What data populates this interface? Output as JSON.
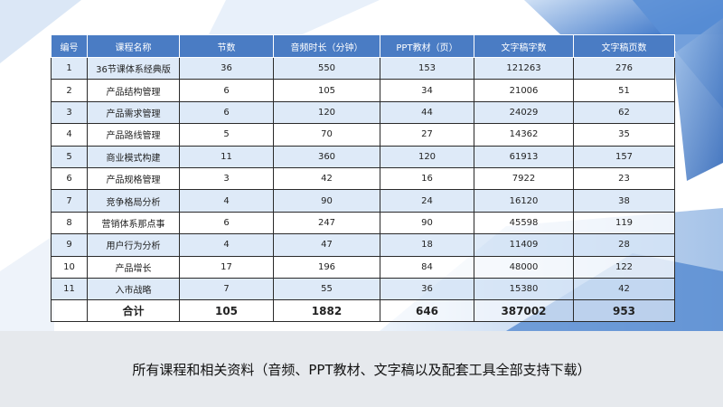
{
  "table": {
    "headers": [
      "编号",
      "课程名称",
      "节数",
      "音频时长（分钟）",
      "PPT教材（页）",
      "文字稿字数",
      "文字稿页数"
    ],
    "rows": [
      [
        "1",
        "36节课体系经典版",
        "36",
        "550",
        "153",
        "121263",
        "276"
      ],
      [
        "2",
        "产品结构管理",
        "6",
        "105",
        "34",
        "21006",
        "51"
      ],
      [
        "3",
        "产品需求管理",
        "6",
        "120",
        "44",
        "24029",
        "62"
      ],
      [
        "4",
        "产品路线管理",
        "5",
        "70",
        "27",
        "14362",
        "35"
      ],
      [
        "5",
        "商业模式构建",
        "11",
        "360",
        "120",
        "61913",
        "157"
      ],
      [
        "6",
        "产品规格管理",
        "3",
        "42",
        "16",
        "7922",
        "23"
      ],
      [
        "7",
        "竞争格局分析",
        "4",
        "90",
        "24",
        "16120",
        "38"
      ],
      [
        "8",
        "营销体系那点事",
        "6",
        "247",
        "90",
        "45598",
        "119"
      ],
      [
        "9",
        "用户行为分析",
        "4",
        "47",
        "18",
        "11409",
        "28"
      ],
      [
        "10",
        "产品增长",
        "17",
        "196",
        "84",
        "48000",
        "122"
      ],
      [
        "11",
        "入市战略",
        "7",
        "55",
        "36",
        "15380",
        "42"
      ]
    ],
    "total": [
      "",
      "合计",
      "105",
      "1882",
      "646",
      "387002",
      "953"
    ]
  },
  "caption": "所有课程和相关资料（音频、PPT教材、文字稿以及配套工具全部支持下载）"
}
